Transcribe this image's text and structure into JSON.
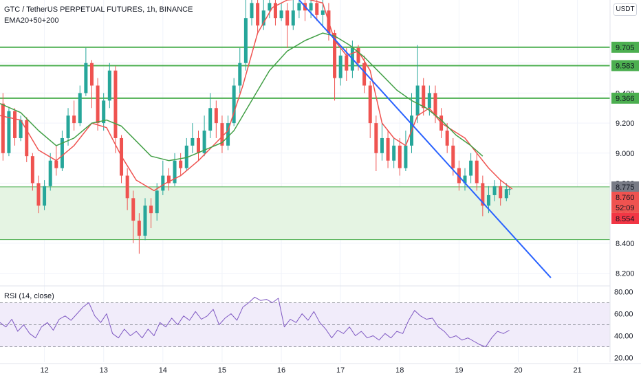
{
  "header": {
    "title": "GTC / TetherUS PERPETUAL FUTURES, 1h, BINANCE",
    "indicator": "EMA20+50+200",
    "currency_button": "USDT"
  },
  "rsi": {
    "label": "RSI (14, close)"
  },
  "colors": {
    "up_candle": "#26a69a",
    "down_candle": "#ef5350",
    "ema_fast": "#ef5350",
    "ema_slow": "#43a047",
    "resistance": "#4caf50",
    "trendline": "#2962ff",
    "zone_fill": "#e5f4e3",
    "rsi_line": "#7e57c2",
    "rsi_band": "#f1ecfa"
  },
  "chart_data": [
    {
      "type": "candlestick",
      "title": "GTC / TetherUS PERPETUAL FUTURES, 1h, BINANCE",
      "x_ticks": [
        "12",
        "13",
        "14",
        "15",
        "16",
        "17",
        "18",
        "19",
        "20",
        "21"
      ],
      "y_ticks": [
        "8.200",
        "8.400",
        "8.600",
        "8.800",
        "9.000",
        "9.200",
        "9.400",
        "9.600"
      ],
      "ylim": [
        8.12,
        10.02
      ],
      "xlim": [
        11.25,
        21.55
      ],
      "price_labels": [
        {
          "value": 9.705,
          "text": "9.705",
          "kind": "level"
        },
        {
          "value": 9.583,
          "text": "9.583",
          "kind": "level"
        },
        {
          "value": 9.366,
          "text": "9.366",
          "kind": "level"
        },
        {
          "value": 8.775,
          "text": "8.775",
          "kind": "last-close"
        },
        {
          "value": 8.76,
          "text": "8.760",
          "kind": "current"
        },
        {
          "value": 8.554,
          "text": "8.554",
          "kind": "zone"
        }
      ],
      "countdown": "52:09",
      "horizontal_levels": [
        9.705,
        9.583,
        9.366
      ],
      "zone": [
        8.424,
        8.775
      ],
      "trendline": {
        "start": [
          16.3,
          10.02
        ],
        "end": [
          20.55,
          8.17
        ]
      },
      "ema_fast": [
        [
          11.25,
          9.25
        ],
        [
          11.6,
          9.22
        ],
        [
          11.9,
          9.02
        ],
        [
          12.2,
          8.95
        ],
        [
          12.5,
          9.05
        ],
        [
          12.8,
          9.2
        ],
        [
          13.05,
          9.17
        ],
        [
          13.3,
          8.98
        ],
        [
          13.55,
          8.82
        ],
        [
          13.85,
          8.75
        ],
        [
          14.05,
          8.8
        ],
        [
          14.3,
          8.85
        ],
        [
          14.6,
          8.95
        ],
        [
          14.85,
          9.05
        ],
        [
          15.1,
          9.15
        ],
        [
          15.35,
          9.45
        ],
        [
          15.6,
          9.8
        ],
        [
          15.85,
          9.97
        ],
        [
          16.1,
          10.02
        ],
        [
          16.4,
          10.03
        ],
        [
          16.7,
          10.0
        ],
        [
          16.9,
          9.75
        ],
        [
          17.1,
          9.65
        ],
        [
          17.3,
          9.68
        ],
        [
          17.5,
          9.55
        ],
        [
          17.7,
          9.2
        ],
        [
          17.9,
          9.1
        ],
        [
          18.1,
          9.05
        ],
        [
          18.3,
          9.25
        ],
        [
          18.5,
          9.3
        ],
        [
          18.7,
          9.2
        ],
        [
          18.9,
          9.15
        ],
        [
          19.1,
          9.1
        ],
        [
          19.3,
          9.0
        ],
        [
          19.5,
          8.9
        ],
        [
          19.7,
          8.82
        ],
        [
          19.9,
          8.76
        ]
      ],
      "ema_slow": [
        [
          11.25,
          9.33
        ],
        [
          11.6,
          9.27
        ],
        [
          11.9,
          9.15
        ],
        [
          12.2,
          9.05
        ],
        [
          12.5,
          9.1
        ],
        [
          12.8,
          9.2
        ],
        [
          13.05,
          9.22
        ],
        [
          13.3,
          9.18
        ],
        [
          13.55,
          9.08
        ],
        [
          13.8,
          8.98
        ],
        [
          14.1,
          8.95
        ],
        [
          14.4,
          8.97
        ],
        [
          14.7,
          9.02
        ],
        [
          15.0,
          9.07
        ],
        [
          15.2,
          9.15
        ],
        [
          15.5,
          9.35
        ],
        [
          15.8,
          9.55
        ],
        [
          16.1,
          9.68
        ],
        [
          16.4,
          9.75
        ],
        [
          16.7,
          9.8
        ],
        [
          16.9,
          9.78
        ],
        [
          17.15,
          9.72
        ],
        [
          17.4,
          9.64
        ],
        [
          17.7,
          9.52
        ],
        [
          17.95,
          9.42
        ],
        [
          18.2,
          9.35
        ],
        [
          18.45,
          9.3
        ],
        [
          18.7,
          9.22
        ],
        [
          18.95,
          9.12
        ],
        [
          19.2,
          9.05
        ],
        [
          19.4,
          8.98
        ]
      ],
      "candles": [
        [
          11.3,
          9.33,
          9.0,
          9.4,
          8.95
        ],
        [
          11.4,
          9.0,
          9.28,
          9.3,
          8.98
        ],
        [
          11.5,
          9.28,
          9.1,
          9.3,
          9.05
        ],
        [
          11.6,
          9.1,
          9.22,
          9.25,
          9.08
        ],
        [
          11.7,
          9.22,
          8.98,
          9.24,
          8.94
        ],
        [
          11.8,
          8.98,
          8.8,
          9.0,
          8.75
        ],
        [
          11.9,
          8.8,
          8.65,
          8.85,
          8.6
        ],
        [
          12.0,
          8.65,
          8.78,
          8.82,
          8.62
        ],
        [
          12.1,
          8.78,
          8.95,
          9.0,
          8.75
        ],
        [
          12.2,
          8.95,
          8.9,
          9.05,
          8.85
        ],
        [
          12.3,
          8.9,
          9.1,
          9.15,
          8.88
        ],
        [
          12.4,
          9.1,
          9.25,
          9.3,
          9.05
        ],
        [
          12.5,
          9.25,
          9.2,
          9.35,
          9.15
        ],
        [
          12.6,
          9.2,
          9.4,
          9.45,
          9.18
        ],
        [
          12.7,
          9.4,
          9.6,
          9.7,
          9.38
        ],
        [
          12.8,
          9.6,
          9.45,
          9.62,
          9.3
        ],
        [
          12.9,
          9.45,
          9.2,
          9.5,
          9.15
        ],
        [
          13.0,
          9.2,
          9.35,
          9.4,
          9.15
        ],
        [
          13.1,
          9.35,
          9.55,
          9.6,
          9.3
        ],
        [
          13.2,
          9.55,
          9.1,
          9.58,
          9.0
        ],
        [
          13.3,
          9.1,
          8.85,
          9.12,
          8.8
        ],
        [
          13.4,
          8.85,
          8.7,
          8.9,
          8.62
        ],
        [
          13.5,
          8.7,
          8.55,
          8.75,
          8.4
        ],
        [
          13.6,
          8.55,
          8.45,
          8.6,
          8.33
        ],
        [
          13.7,
          8.45,
          8.65,
          8.7,
          8.42
        ],
        [
          13.8,
          8.65,
          8.6,
          8.7,
          8.5
        ],
        [
          13.9,
          8.6,
          8.75,
          8.8,
          8.55
        ],
        [
          14.0,
          8.75,
          8.85,
          8.95,
          8.72
        ],
        [
          14.1,
          8.85,
          8.8,
          8.9,
          8.75
        ],
        [
          14.2,
          8.8,
          8.95,
          9.0,
          8.78
        ],
        [
          14.3,
          8.95,
          8.9,
          9.0,
          8.85
        ],
        [
          14.4,
          8.9,
          9.05,
          9.1,
          8.88
        ],
        [
          14.5,
          9.05,
          9.1,
          9.2,
          9.0
        ],
        [
          14.6,
          9.1,
          9.0,
          9.15,
          8.95
        ],
        [
          14.7,
          9.0,
          9.15,
          9.25,
          8.98
        ],
        [
          14.8,
          9.15,
          9.3,
          9.4,
          9.1
        ],
        [
          14.9,
          9.3,
          9.2,
          9.35,
          9.1
        ],
        [
          15.0,
          9.2,
          9.05,
          9.25,
          9.0
        ],
        [
          15.1,
          9.05,
          9.2,
          9.25,
          9.02
        ],
        [
          15.2,
          9.2,
          9.45,
          9.5,
          9.18
        ],
        [
          15.3,
          9.45,
          9.6,
          9.7,
          9.4
        ],
        [
          15.4,
          9.6,
          9.9,
          10.02,
          9.55
        ],
        [
          15.5,
          9.9,
          10.0,
          10.02,
          9.85
        ],
        [
          15.6,
          10.0,
          9.85,
          10.02,
          9.8
        ],
        [
          15.7,
          9.85,
          9.95,
          10.02,
          9.82
        ],
        [
          15.8,
          9.95,
          10.0,
          10.02,
          9.9
        ],
        [
          15.9,
          10.0,
          9.9,
          10.02,
          9.85
        ],
        [
          16.0,
          9.9,
          9.95,
          10.0,
          9.88
        ],
        [
          16.1,
          9.95,
          9.85,
          10.0,
          9.7
        ],
        [
          16.2,
          9.85,
          9.95,
          10.02,
          9.82
        ],
        [
          16.3,
          9.95,
          10.0,
          10.02,
          9.9
        ],
        [
          16.4,
          10.0,
          9.95,
          10.02,
          9.88
        ],
        [
          16.5,
          9.95,
          10.0,
          10.02,
          9.9
        ],
        [
          16.6,
          10.0,
          9.92,
          10.02,
          9.88
        ],
        [
          16.7,
          9.92,
          9.95,
          10.02,
          9.85
        ],
        [
          16.8,
          9.95,
          9.8,
          10.0,
          9.75
        ],
        [
          16.9,
          9.8,
          9.5,
          9.82,
          9.35
        ],
        [
          17.0,
          9.5,
          9.65,
          9.7,
          9.45
        ],
        [
          17.1,
          9.65,
          9.55,
          9.7,
          9.48
        ],
        [
          17.2,
          9.55,
          9.7,
          9.75,
          9.5
        ],
        [
          17.3,
          9.7,
          9.6,
          9.72,
          9.55
        ],
        [
          17.4,
          9.6,
          9.45,
          9.65,
          9.4
        ],
        [
          17.5,
          9.45,
          9.2,
          9.48,
          9.1
        ],
        [
          17.6,
          9.2,
          9.0,
          9.25,
          8.88
        ],
        [
          17.7,
          9.0,
          9.1,
          9.2,
          8.95
        ],
        [
          17.8,
          9.1,
          8.95,
          9.15,
          8.9
        ],
        [
          17.9,
          8.95,
          9.05,
          9.1,
          8.9
        ],
        [
          18.0,
          9.05,
          8.9,
          9.1,
          8.85
        ],
        [
          18.1,
          8.9,
          9.05,
          9.15,
          8.88
        ],
        [
          18.2,
          9.05,
          9.25,
          9.4,
          9.0
        ],
        [
          18.3,
          9.25,
          9.45,
          9.72,
          9.2
        ],
        [
          18.4,
          9.45,
          9.3,
          9.5,
          9.25
        ],
        [
          18.5,
          9.3,
          9.4,
          9.45,
          9.25
        ],
        [
          18.6,
          9.4,
          9.25,
          9.45,
          9.2
        ],
        [
          18.7,
          9.25,
          9.15,
          9.3,
          9.1
        ],
        [
          18.8,
          9.15,
          9.05,
          9.2,
          9.0
        ],
        [
          18.9,
          9.05,
          8.9,
          9.1,
          8.85
        ],
        [
          19.0,
          8.9,
          8.8,
          8.95,
          8.75
        ],
        [
          19.1,
          8.8,
          8.85,
          8.9,
          8.75
        ],
        [
          19.2,
          8.85,
          8.95,
          9.0,
          8.8
        ],
        [
          19.3,
          8.95,
          8.8,
          9.0,
          8.75
        ],
        [
          19.4,
          8.8,
          8.65,
          8.85,
          8.58
        ],
        [
          19.5,
          8.65,
          8.72,
          8.78,
          8.6
        ],
        [
          19.6,
          8.72,
          8.78,
          8.82,
          8.68
        ],
        [
          19.7,
          8.78,
          8.7,
          8.82,
          8.65
        ],
        [
          19.8,
          8.7,
          8.76,
          8.8,
          8.68
        ],
        [
          19.85,
          8.76,
          8.76,
          8.78,
          8.72
        ]
      ]
    },
    {
      "type": "line",
      "title": "RSI (14, close)",
      "y_ticks": [
        "20.00",
        "40.00",
        "60.00",
        "80.00"
      ],
      "ylim": [
        16,
        84
      ],
      "bands": [
        30,
        50,
        70
      ],
      "values": [
        [
          11.25,
          52
        ],
        [
          11.35,
          48
        ],
        [
          11.45,
          55
        ],
        [
          11.55,
          44
        ],
        [
          11.65,
          50
        ],
        [
          11.75,
          42
        ],
        [
          11.85,
          38
        ],
        [
          11.95,
          48
        ],
        [
          12.05,
          52
        ],
        [
          12.15,
          45
        ],
        [
          12.25,
          55
        ],
        [
          12.35,
          58
        ],
        [
          12.45,
          54
        ],
        [
          12.55,
          60
        ],
        [
          12.65,
          66
        ],
        [
          12.75,
          70
        ],
        [
          12.85,
          58
        ],
        [
          12.95,
          52
        ],
        [
          13.05,
          60
        ],
        [
          13.15,
          42
        ],
        [
          13.25,
          38
        ],
        [
          13.35,
          46
        ],
        [
          13.45,
          40
        ],
        [
          13.55,
          44
        ],
        [
          13.65,
          38
        ],
        [
          13.75,
          46
        ],
        [
          13.85,
          40
        ],
        [
          13.95,
          52
        ],
        [
          14.05,
          48
        ],
        [
          14.15,
          56
        ],
        [
          14.25,
          50
        ],
        [
          14.35,
          58
        ],
        [
          14.45,
          54
        ],
        [
          14.55,
          62
        ],
        [
          14.65,
          55
        ],
        [
          14.75,
          58
        ],
        [
          14.85,
          64
        ],
        [
          14.95,
          50
        ],
        [
          15.05,
          56
        ],
        [
          15.15,
          60
        ],
        [
          15.25,
          54
        ],
        [
          15.35,
          66
        ],
        [
          15.45,
          70
        ],
        [
          15.55,
          75
        ],
        [
          15.65,
          72
        ],
        [
          15.75,
          73
        ],
        [
          15.85,
          70
        ],
        [
          15.95,
          74
        ],
        [
          16.05,
          48
        ],
        [
          16.15,
          55
        ],
        [
          16.25,
          52
        ],
        [
          16.35,
          60
        ],
        [
          16.45,
          54
        ],
        [
          16.55,
          62
        ],
        [
          16.65,
          52
        ],
        [
          16.75,
          46
        ],
        [
          16.85,
          38
        ],
        [
          16.95,
          45
        ],
        [
          17.05,
          42
        ],
        [
          17.15,
          48
        ],
        [
          17.25,
          40
        ],
        [
          17.35,
          44
        ],
        [
          17.45,
          38
        ],
        [
          17.55,
          40
        ],
        [
          17.65,
          36
        ],
        [
          17.75,
          42
        ],
        [
          17.85,
          38
        ],
        [
          17.95,
          44
        ],
        [
          18.05,
          42
        ],
        [
          18.15,
          54
        ],
        [
          18.25,
          63
        ],
        [
          18.35,
          58
        ],
        [
          18.45,
          55
        ],
        [
          18.55,
          56
        ],
        [
          18.65,
          48
        ],
        [
          18.75,
          44
        ],
        [
          18.85,
          38
        ],
        [
          18.95,
          40
        ],
        [
          19.05,
          36
        ],
        [
          19.15,
          38
        ],
        [
          19.25,
          35
        ],
        [
          19.35,
          32
        ],
        [
          19.45,
          30
        ],
        [
          19.55,
          38
        ],
        [
          19.65,
          44
        ],
        [
          19.75,
          42
        ],
        [
          19.85,
          45
        ]
      ]
    }
  ]
}
